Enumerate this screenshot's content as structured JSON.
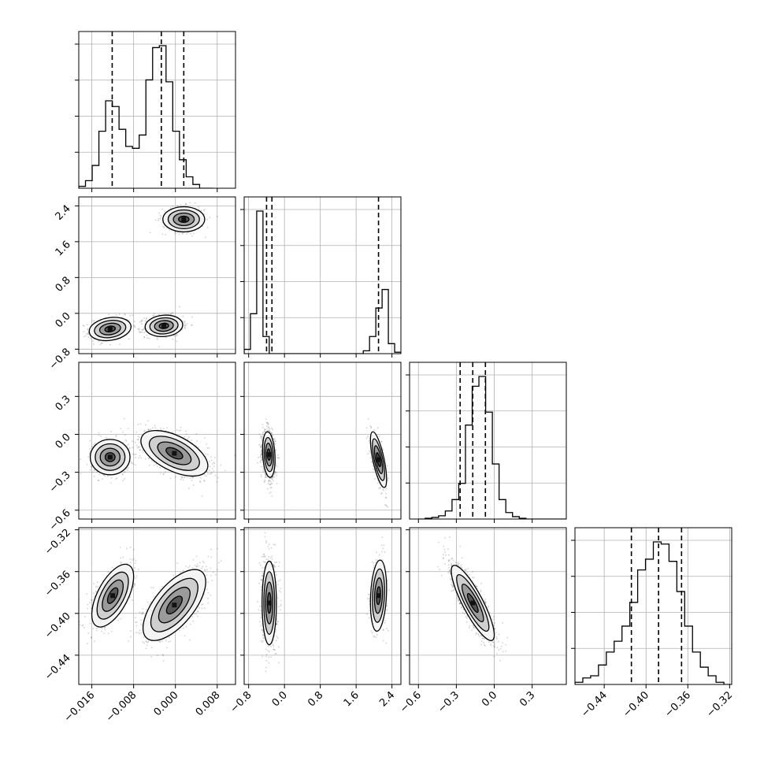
{
  "chart_data": {
    "type": "corner",
    "grid": true,
    "parameters": 4,
    "histograms": [
      {
        "param": 0,
        "edges_range": [
          -0.0185,
          0.0072
        ],
        "counts": [
          1,
          4,
          12,
          30,
          46,
          43,
          31,
          22,
          21,
          28,
          57,
          74,
          75,
          56,
          30,
          15,
          6,
          2,
          0,
          0
        ],
        "quantiles": [
          -0.0121,
          -0.0027,
          0.0016
        ]
      },
      {
        "param": 1,
        "edges_range": [
          -0.9,
          2.6
        ],
        "counts": [
          3,
          28,
          100,
          12,
          0,
          0,
          0,
          0,
          0,
          0,
          0,
          0,
          0,
          0,
          0,
          0,
          0,
          0,
          0,
          2,
          12,
          32,
          45,
          7,
          1
        ],
        "quantiles": [
          -0.4,
          -0.28,
          2.1
        ]
      },
      {
        "param": 2,
        "edges_range": [
          -0.6,
          0.57
        ],
        "counts": [
          0,
          0.5,
          1,
          2,
          5,
          12,
          22,
          58,
          82,
          88,
          66,
          34,
          12,
          4,
          1.5,
          0.5,
          0,
          0,
          0,
          0,
          0,
          0
        ],
        "quantiles": [
          -0.27,
          -0.17,
          -0.07
        ]
      },
      {
        "param": 3,
        "edges_range": [
          -0.468,
          -0.318
        ],
        "counts": [
          1,
          3,
          4,
          9,
          15,
          20,
          27,
          38,
          53,
          58,
          66,
          65,
          57,
          43,
          27,
          15,
          8,
          4,
          1,
          0
        ],
        "quantiles": [
          -0.414,
          -0.388,
          -0.366
        ]
      }
    ],
    "axis_ranges": [
      [
        -0.0185,
        0.0115
      ],
      [
        -0.9,
        2.6
      ],
      [
        -0.67,
        0.57
      ],
      [
        -0.468,
        -0.318
      ]
    ],
    "x_ticks": [
      [
        -0.016,
        -0.008,
        0.0,
        0.008
      ],
      [
        -0.8,
        0.0,
        0.8,
        1.6,
        2.4
      ],
      [
        -0.6,
        -0.3,
        0.0,
        0.3
      ],
      [
        -0.44,
        -0.4,
        -0.36,
        -0.32
      ]
    ],
    "x_tick_labels": [
      [
        "−0.016",
        "−0.008",
        "0.000",
        "0.008"
      ],
      [
        "−0.8",
        "0.0",
        "0.8",
        "1.6",
        "2.4"
      ],
      [
        "−0.6",
        "−0.3",
        "0.0",
        "0.3"
      ],
      [
        "−0.44",
        "−0.40",
        "−0.36",
        "−0.32"
      ]
    ],
    "y_ticks": [
      [],
      [
        -0.8,
        0.0,
        0.8,
        1.6,
        2.4
      ],
      [
        -0.6,
        -0.3,
        0.0,
        0.3
      ],
      [
        -0.44,
        -0.4,
        -0.36,
        -0.32
      ]
    ],
    "y_tick_labels": [
      [],
      [
        "−0.8",
        "0.0",
        "0.8",
        "1.6",
        "2.4"
      ],
      [
        "−0.6",
        "−0.3",
        "0.0",
        "0.3"
      ],
      [
        "−0.44",
        "−0.40",
        "−0.36",
        "−0.32"
      ]
    ],
    "modes": {
      "1_0": [
        {
          "cx": -0.0125,
          "cy": -0.35,
          "sx": 0.002,
          "sy": 0.13,
          "rho": 0.2,
          "w": 0.35
        },
        {
          "cx": -0.0022,
          "cy": -0.28,
          "sx": 0.0018,
          "sy": 0.12,
          "rho": 0.1,
          "w": 0.35
        },
        {
          "cx": 0.0016,
          "cy": 2.1,
          "sx": 0.002,
          "sy": 0.14,
          "rho": 0.0,
          "w": 0.3
        }
      ],
      "2_0": [
        {
          "cx": -0.0125,
          "cy": -0.18,
          "sx": 0.0019,
          "sy": 0.07,
          "rho": 0.0,
          "w": 0.35
        },
        {
          "cx": -0.0002,
          "cy": -0.15,
          "sx": 0.0032,
          "sy": 0.09,
          "rho": -0.55,
          "w": 0.65
        }
      ],
      "3_0": [
        {
          "cx": -0.012,
          "cy": -0.383,
          "sx": 0.002,
          "sy": 0.015,
          "rho": 0.6,
          "w": 0.35
        },
        {
          "cx": -0.0002,
          "cy": -0.392,
          "sx": 0.003,
          "sy": 0.017,
          "rho": 0.65,
          "w": 0.65
        }
      ],
      "2_1": [
        {
          "cx": -0.35,
          "cy": -0.16,
          "sx": 0.07,
          "sy": 0.09,
          "rho": -0.2,
          "w": 0.7
        },
        {
          "cx": 2.1,
          "cy": -0.2,
          "sx": 0.09,
          "sy": 0.11,
          "rho": -0.7,
          "w": 0.3
        }
      ],
      "3_1": [
        {
          "cx": -0.34,
          "cy": -0.39,
          "sx": 0.08,
          "sy": 0.02,
          "rho": 0.0,
          "w": 0.7
        },
        {
          "cx": 2.1,
          "cy": -0.383,
          "sx": 0.09,
          "sy": 0.017,
          "rho": 0.2,
          "w": 0.3
        }
      ],
      "3_2": [
        {
          "cx": -0.17,
          "cy": -0.39,
          "sx": 0.085,
          "sy": 0.018,
          "rho": -0.85,
          "w": 1.0
        }
      ]
    }
  }
}
